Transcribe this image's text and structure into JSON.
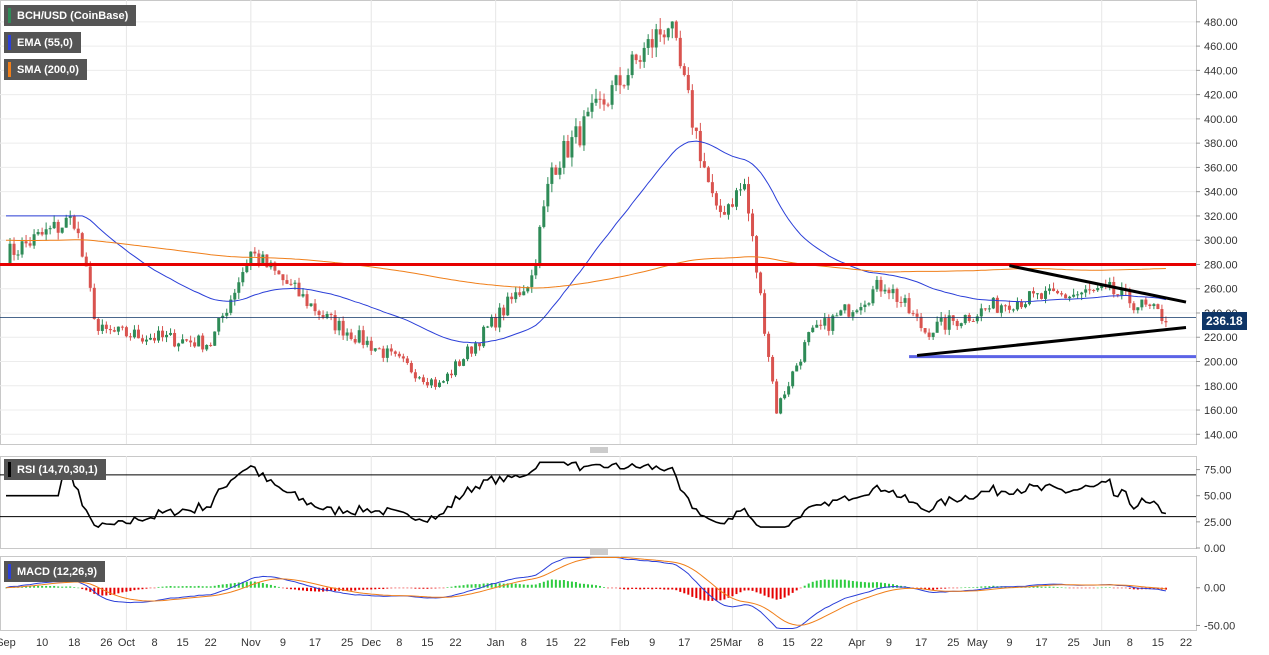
{
  "chart_data": [
    {
      "type": "candlestick",
      "title": "BCH/USD (CoinBase)",
      "indicators": [
        {
          "name": "EMA (55,0)",
          "color": "#2b3fd8"
        },
        {
          "name": "SMA (200,0)",
          "color": "#f07f1a"
        }
      ],
      "candle_colors": {
        "up": "#2e8b57",
        "down": "#d9534f"
      },
      "y_ticks": [
        "140.00",
        "160.00",
        "180.00",
        "200.00",
        "220.00",
        "240.00",
        "260.00",
        "280.00",
        "300.00",
        "320.00",
        "340.00",
        "360.00",
        "380.00",
        "400.00",
        "420.00",
        "440.00",
        "460.00",
        "480.00"
      ],
      "ylim": [
        132,
        498
      ],
      "last_price": "236.18",
      "key_points": [
        {
          "date": "Sep 1",
          "close": 288
        },
        {
          "date": "Sep 18",
          "close": 318
        },
        {
          "date": "Sep 24",
          "close": 225
        },
        {
          "date": "Oct 22",
          "close": 215
        },
        {
          "date": "Nov 1",
          "close": 290
        },
        {
          "date": "Nov 20",
          "close": 235
        },
        {
          "date": "Dec 18",
          "close": 180
        },
        {
          "date": "Jan 10",
          "close": 270
        },
        {
          "date": "Jan 15",
          "close": 360
        },
        {
          "date": "Feb 13",
          "close": 480
        },
        {
          "date": "Feb 25",
          "close": 320
        },
        {
          "date": "Mar 4",
          "close": 345
        },
        {
          "date": "Mar 12",
          "close": 160
        },
        {
          "date": "Mar 20",
          "close": 220
        },
        {
          "date": "Apr 8",
          "close": 265
        },
        {
          "date": "Apr 18",
          "close": 225
        },
        {
          "date": "May 9",
          "close": 250
        },
        {
          "date": "Jun 3",
          "close": 258
        },
        {
          "date": "Jun 17",
          "close": 236
        }
      ],
      "annotations": [
        {
          "type": "horizontal",
          "price": 280,
          "color": "#e60000"
        },
        {
          "type": "horizontal",
          "price": 204,
          "color": "#5b63e6"
        },
        {
          "type": "trendline",
          "color": "#000000",
          "from": {
            "date": "May 9",
            "price": 279
          },
          "to": {
            "date": "Jun 22",
            "price": 249
          }
        },
        {
          "type": "trendline",
          "color": "#000000",
          "from": {
            "date": "Apr 16",
            "price": 205
          },
          "to": {
            "date": "Jun 22",
            "price": 228
          }
        }
      ]
    },
    {
      "type": "line",
      "title": "RSI (14,70,30,1)",
      "y_ticks": [
        "0.00",
        "25.00",
        "50.00",
        "75.00"
      ],
      "levels": [
        70,
        30
      ],
      "ylim": [
        0,
        88
      ]
    },
    {
      "type": "histogram",
      "title": "MACD (12,26,9)",
      "y_ticks": [
        "-50.00",
        "0.00"
      ],
      "ylim": [
        -56,
        42
      ],
      "colors": {
        "macd": "#2b3fd8",
        "signal": "#f07f1a",
        "hist_up": "#2ecc40",
        "hist_down": "#e60000"
      }
    }
  ],
  "x_axis": {
    "labels": [
      "Sep",
      "10",
      "18",
      "26",
      "Oct",
      "8",
      "15",
      "22",
      "Nov",
      "9",
      "17",
      "25",
      "Dec",
      "8",
      "15",
      "22",
      "Jan",
      "8",
      "15",
      "22",
      "Feb",
      "9",
      "17",
      "25",
      "Mar",
      "8",
      "15",
      "22",
      "Apr",
      "9",
      "17",
      "25",
      "May",
      "9",
      "17",
      "25",
      "Jun",
      "8",
      "15",
      "22"
    ]
  }
}
